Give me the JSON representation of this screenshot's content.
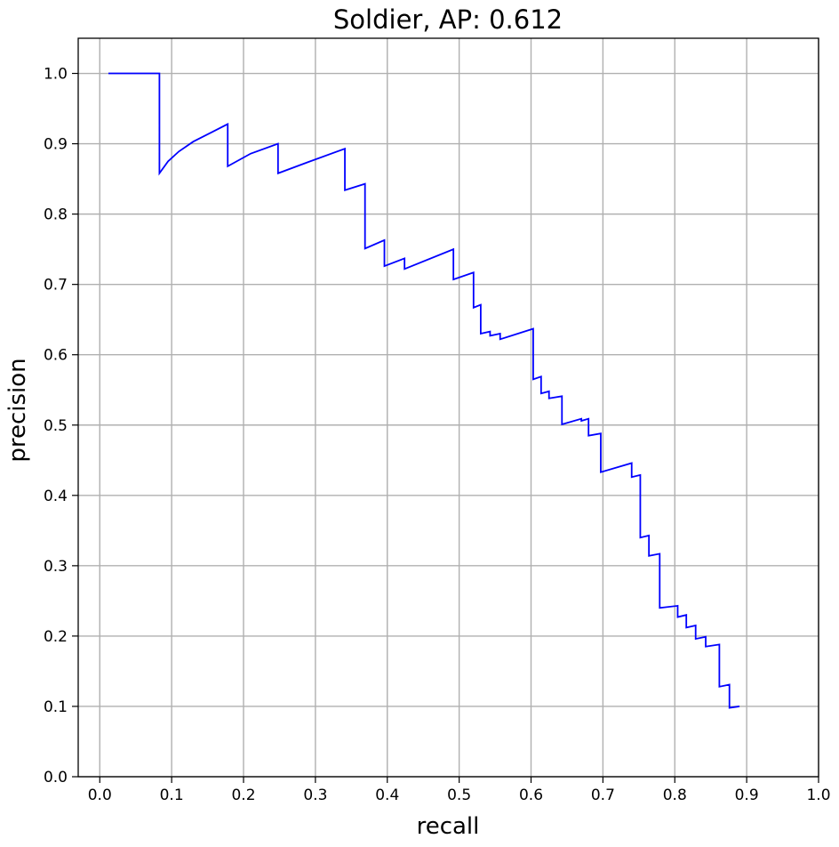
{
  "chart_data": {
    "type": "line",
    "title": "Soldier, AP: 0.612",
    "xlabel": "recall",
    "ylabel": "precision",
    "xlim": [
      -0.03,
      1.0
    ],
    "ylim": [
      0.0,
      1.05
    ],
    "x_ticks": [
      0.0,
      0.1,
      0.2,
      0.3,
      0.4,
      0.5,
      0.6,
      0.7,
      0.8,
      0.9,
      1.0
    ],
    "y_ticks": [
      0.0,
      0.1,
      0.2,
      0.3,
      0.4,
      0.5,
      0.6,
      0.7,
      0.8,
      0.9,
      1.0
    ],
    "x_tick_labels": [
      "0.0",
      "0.1",
      "0.2",
      "0.3",
      "0.4",
      "0.5",
      "0.6",
      "0.7",
      "0.8",
      "0.9",
      "1.0"
    ],
    "y_tick_labels": [
      "0.0",
      "0.1",
      "0.2",
      "0.3",
      "0.4",
      "0.5",
      "0.6",
      "0.7",
      "0.8",
      "0.9",
      "1.0"
    ],
    "grid": true,
    "series": [
      {
        "color": "#0000ff",
        "points": [
          [
            0.012,
            1.0
          ],
          [
            0.083,
            1.0
          ],
          [
            0.083,
            0.858
          ],
          [
            0.095,
            0.875
          ],
          [
            0.11,
            0.889
          ],
          [
            0.13,
            0.903
          ],
          [
            0.155,
            0.916
          ],
          [
            0.178,
            0.928
          ],
          [
            0.178,
            0.868
          ],
          [
            0.21,
            0.886
          ],
          [
            0.248,
            0.9
          ],
          [
            0.248,
            0.858
          ],
          [
            0.29,
            0.874
          ],
          [
            0.341,
            0.893
          ],
          [
            0.341,
            0.834
          ],
          [
            0.369,
            0.843
          ],
          [
            0.369,
            0.751
          ],
          [
            0.396,
            0.763
          ],
          [
            0.396,
            0.726
          ],
          [
            0.424,
            0.737
          ],
          [
            0.424,
            0.722
          ],
          [
            0.492,
            0.75
          ],
          [
            0.492,
            0.707
          ],
          [
            0.52,
            0.717
          ],
          [
            0.52,
            0.667
          ],
          [
            0.53,
            0.671
          ],
          [
            0.53,
            0.63
          ],
          [
            0.543,
            0.633
          ],
          [
            0.543,
            0.627
          ],
          [
            0.557,
            0.63
          ],
          [
            0.557,
            0.622
          ],
          [
            0.603,
            0.637
          ],
          [
            0.603,
            0.565
          ],
          [
            0.614,
            0.569
          ],
          [
            0.614,
            0.545
          ],
          [
            0.625,
            0.548
          ],
          [
            0.625,
            0.538
          ],
          [
            0.643,
            0.541
          ],
          [
            0.643,
            0.501
          ],
          [
            0.67,
            0.509
          ],
          [
            0.67,
            0.506
          ],
          [
            0.68,
            0.509
          ],
          [
            0.68,
            0.485
          ],
          [
            0.697,
            0.488
          ],
          [
            0.697,
            0.433
          ],
          [
            0.74,
            0.446
          ],
          [
            0.74,
            0.426
          ],
          [
            0.752,
            0.429
          ],
          [
            0.752,
            0.34
          ],
          [
            0.764,
            0.343
          ],
          [
            0.764,
            0.314
          ],
          [
            0.779,
            0.317
          ],
          [
            0.779,
            0.24
          ],
          [
            0.804,
            0.243
          ],
          [
            0.804,
            0.227
          ],
          [
            0.816,
            0.23
          ],
          [
            0.816,
            0.212
          ],
          [
            0.829,
            0.215
          ],
          [
            0.829,
            0.196
          ],
          [
            0.843,
            0.199
          ],
          [
            0.843,
            0.185
          ],
          [
            0.862,
            0.188
          ],
          [
            0.862,
            0.128
          ],
          [
            0.876,
            0.131
          ],
          [
            0.876,
            0.098
          ],
          [
            0.89,
            0.1
          ]
        ]
      }
    ]
  }
}
